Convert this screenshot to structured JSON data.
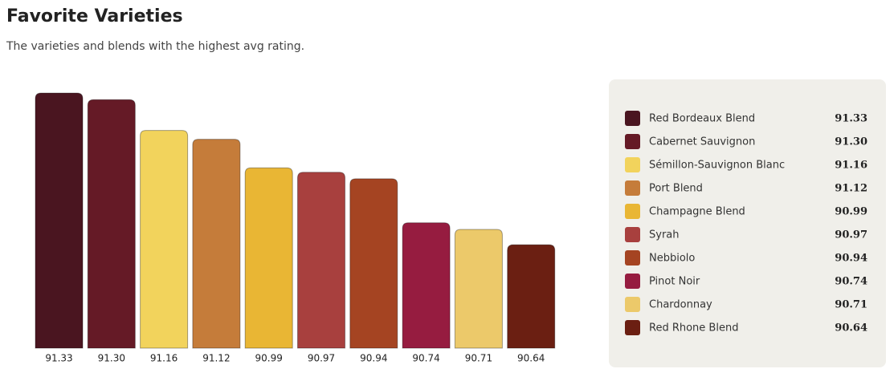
{
  "chart_data": {
    "type": "bar",
    "title": "Favorite Varieties",
    "subtitle": "The varieties and blends with the highest avg rating.",
    "categories": [
      "Red Bordeaux Blend",
      "Cabernet Sauvignon",
      "Sémillon-Sauvignon Blanc",
      "Port Blend",
      "Champagne Blend",
      "Syrah",
      "Nebbiolo",
      "Pinot Noir",
      "Chardonnay",
      "Red Rhone Blend"
    ],
    "values": [
      91.33,
      91.3,
      91.16,
      91.12,
      90.99,
      90.97,
      90.94,
      90.74,
      90.71,
      90.64
    ],
    "value_labels": [
      "91.33",
      "91.30",
      "91.16",
      "91.12",
      "90.99",
      "90.97",
      "90.94",
      "90.74",
      "90.71",
      "90.64"
    ],
    "colors": [
      "#4a1520",
      "#651a26",
      "#f2d35c",
      "#c57c3a",
      "#e9b634",
      "#a8403e",
      "#a54422",
      "#961c40",
      "#ecc96a",
      "#6b1f12"
    ],
    "ylim": [
      90.17,
      91.33
    ]
  }
}
